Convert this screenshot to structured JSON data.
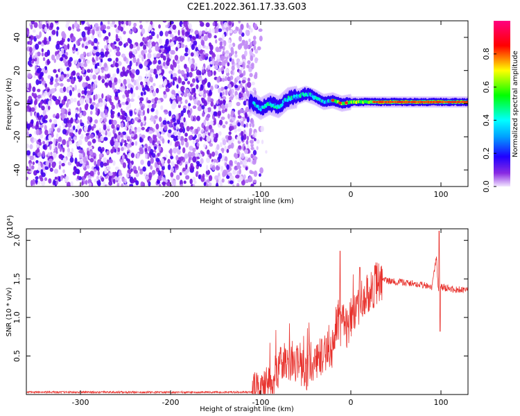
{
  "title": "C2E1.2022.361.17.33.G03",
  "chart_data": [
    {
      "type": "heatmap",
      "name": "spectrogram",
      "xlabel": "Height of straight line (km)",
      "ylabel": "Frequency (Hz)",
      "xlim": [
        -360,
        130
      ],
      "ylim": [
        -50,
        50
      ],
      "xticks": [
        -300,
        -200,
        -100,
        0,
        100
      ],
      "yticks": [
        -40,
        -20,
        0,
        20,
        40
      ],
      "colorbar": {
        "label": "Normalized spectral amplitude",
        "range": [
          0.0,
          1.0
        ],
        "ticks": [
          0.0,
          0.2,
          0.4,
          0.6,
          0.8
        ],
        "colormap": [
          "#f2e6ff",
          "#8a2be2",
          "#2000ff",
          "#00a0ff",
          "#00ffff",
          "#00ff00",
          "#ffff00",
          "#ff0000",
          "#ff0080"
        ]
      },
      "features": {
        "noise_region_x": [
          -360,
          -105
        ],
        "signal_line": [
          {
            "x": -110,
            "y": 1
          },
          {
            "x": -100,
            "y": -3
          },
          {
            "x": -90,
            "y": 0
          },
          {
            "x": -80,
            "y": -2
          },
          {
            "x": -70,
            "y": 3
          },
          {
            "x": -60,
            "y": 4
          },
          {
            "x": -50,
            "y": 6
          },
          {
            "x": -40,
            "y": 4
          },
          {
            "x": -30,
            "y": 1
          },
          {
            "x": -20,
            "y": 2
          },
          {
            "x": -10,
            "y": 0
          },
          {
            "x": 0,
            "y": 1
          },
          {
            "x": 20,
            "y": 1
          },
          {
            "x": 60,
            "y": 1
          },
          {
            "x": 100,
            "y": 1
          },
          {
            "x": 130,
            "y": 1
          }
        ]
      }
    },
    {
      "type": "line",
      "name": "snr",
      "xlabel": "Height of straight line (km)",
      "ylabel": "SNR (10 * v/v)",
      "yscale_label": "(x10⁴)",
      "xlim": [
        -360,
        130
      ],
      "ylim": [
        0,
        21500
      ],
      "xticks": [
        -300,
        -200,
        -100,
        0,
        100
      ],
      "ytick_labels": [
        "0.5",
        "1.0",
        "1.5",
        "2.0"
      ],
      "yticks": [
        5000,
        10000,
        15000,
        20000
      ],
      "line_color": "#e8332e",
      "series": [
        {
          "x": [
            -360,
            -300,
            -200,
            -110,
            -100,
            -90,
            -80,
            -70,
            -60,
            -50,
            -40,
            -30,
            -20,
            -15,
            -10,
            0,
            10,
            20,
            30,
            40,
            50,
            60,
            70,
            80,
            90,
            95,
            97,
            100,
            110,
            120,
            130
          ],
          "values": [
            300,
            300,
            300,
            300,
            500,
            1500,
            3500,
            4500,
            4000,
            3000,
            4000,
            5500,
            6000,
            10000,
            8000,
            9500,
            11500,
            13500,
            14500,
            14800,
            14600,
            14500,
            14400,
            14200,
            13800,
            18000,
            13500,
            14000,
            13700,
            13600,
            13500
          ]
        }
      ]
    }
  ]
}
